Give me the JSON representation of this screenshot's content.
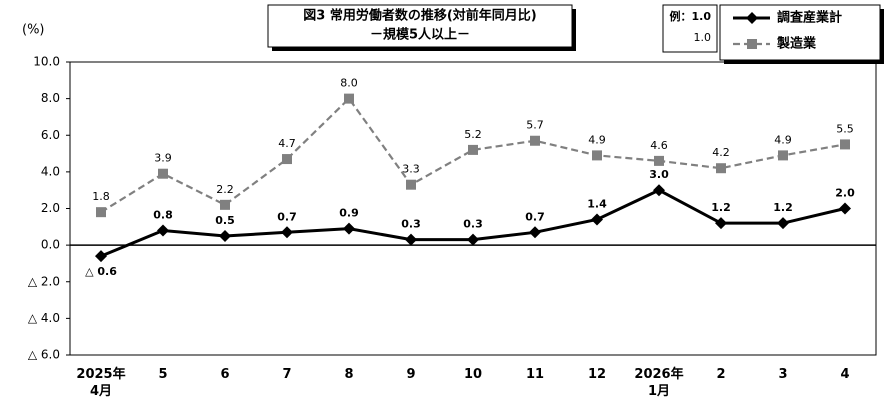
{
  "chart_data": {
    "type": "line",
    "title": "図3 常用労働者数の推移(対前年同月比)",
    "subtitle": "－規模5人以上－",
    "y_unit": "(%)",
    "annotations": [
      "例：1.0",
      "1.0"
    ],
    "categories": [
      "2025年\n4月",
      "5",
      "6",
      "7",
      "8",
      "9",
      "10",
      "11",
      "12",
      "2026年\n1月",
      "2",
      "3",
      "4"
    ],
    "series": [
      {
        "name": "調査産業計",
        "color": "#000000",
        "values": [
          -0.6,
          0.8,
          0.5,
          0.7,
          0.9,
          0.3,
          0.3,
          0.7,
          1.4,
          3.0,
          1.2,
          1.2,
          2.0
        ],
        "value_labels": [
          "△ 0.6",
          "0.8",
          "0.5",
          "0.7",
          "0.9",
          "0.3",
          "0.3",
          "0.7",
          "1.4",
          "3.0",
          "1.2",
          "1.2",
          "2.0"
        ]
      },
      {
        "name": "製造業",
        "color": "#808080",
        "values": [
          1.8,
          3.9,
          2.2,
          4.7,
          8.0,
          3.3,
          5.2,
          5.7,
          4.9,
          4.6,
          4.2,
          4.9,
          5.5
        ],
        "value_labels": [
          "1.8",
          "3.9",
          "2.2",
          "4.7",
          "8.0",
          "3.3",
          "5.2",
          "5.7",
          "4.9",
          "4.6",
          "4.2",
          "4.9",
          "5.5"
        ]
      }
    ],
    "ylim": [
      -6,
      10
    ],
    "yticks": [
      {
        "value": 10,
        "label": "10.0"
      },
      {
        "value": 8,
        "label": "8.0"
      },
      {
        "value": 6,
        "label": "6.0"
      },
      {
        "value": 4,
        "label": "4.0"
      },
      {
        "value": 2,
        "label": "2.0"
      },
      {
        "value": 0,
        "label": "0.0"
      },
      {
        "value": -2,
        "label": "△ 2.0"
      },
      {
        "value": -4,
        "label": "△ 4.0"
      },
      {
        "value": -6,
        "label": "△ 6.0"
      }
    ],
    "grid": false
  }
}
